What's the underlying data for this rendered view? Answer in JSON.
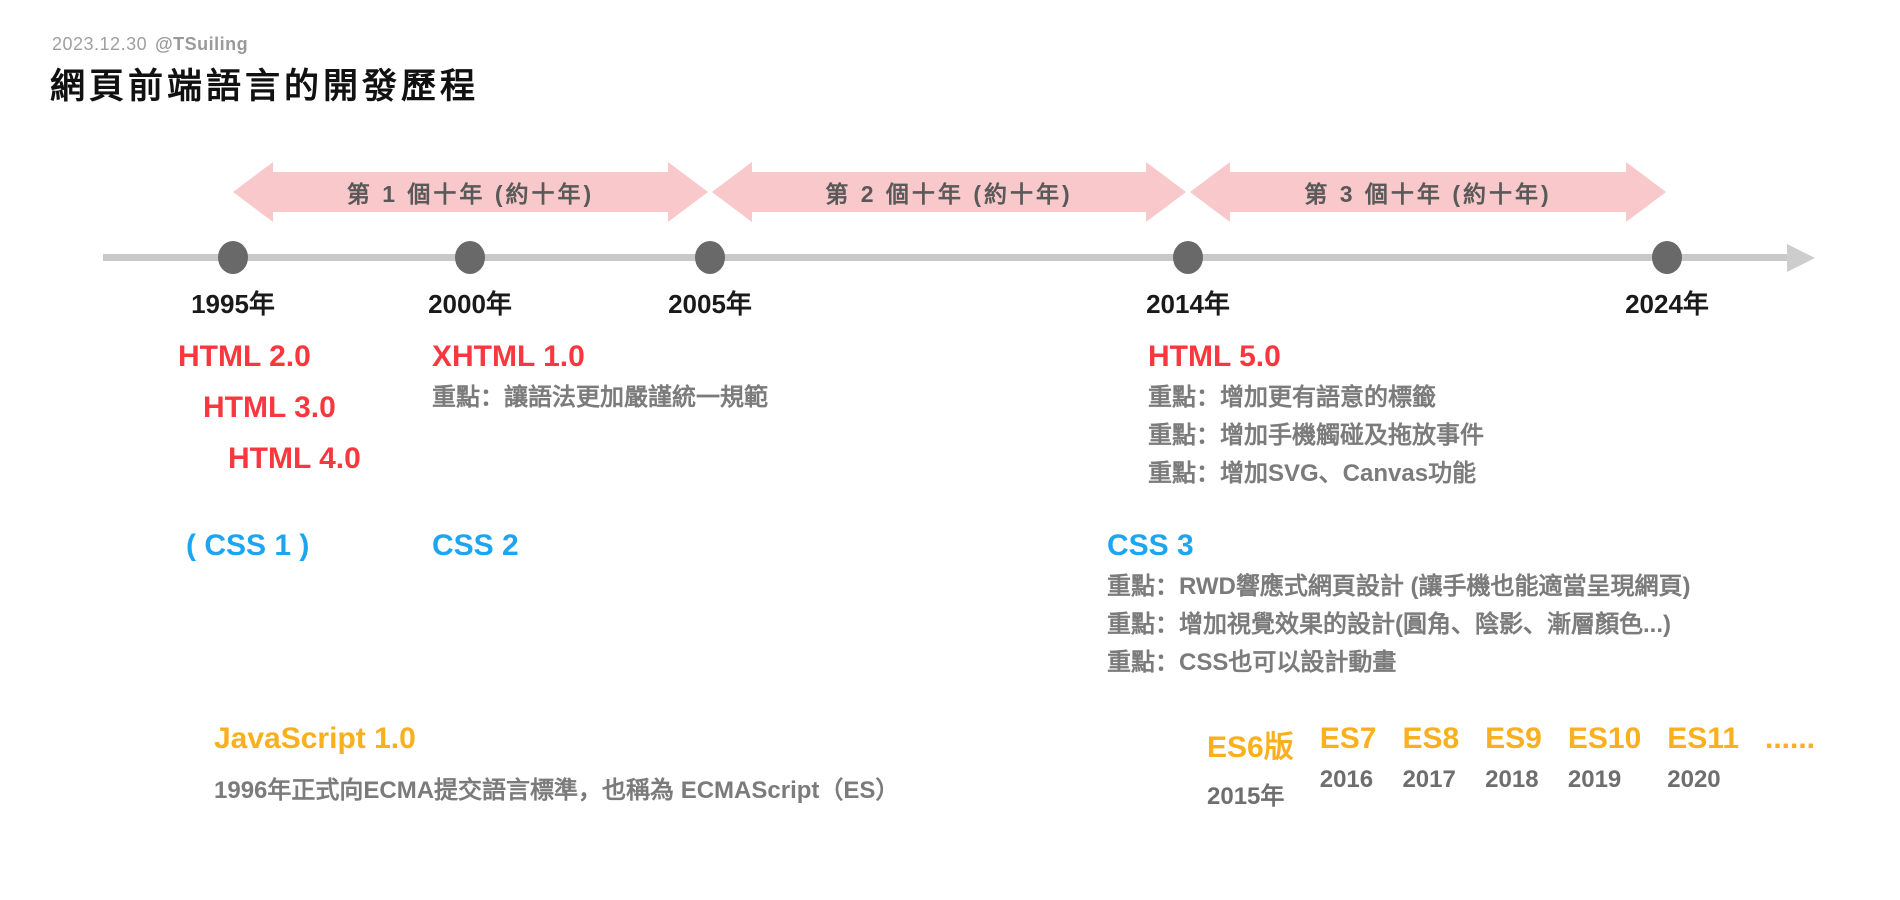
{
  "meta": {
    "date": "2023.12.30",
    "handle": "@TSuiling"
  },
  "title": "網頁前端語言的開發歷程",
  "decades": [
    {
      "label": "第 1 個十年 (約十年)"
    },
    {
      "label": "第 2 個十年 (約十年)"
    },
    {
      "label": "第 3 個十年 (約十年)"
    }
  ],
  "timeline": {
    "years": [
      {
        "label": "1995年"
      },
      {
        "label": "2000年"
      },
      {
        "label": "2005年"
      },
      {
        "label": "2014年"
      },
      {
        "label": "2024年"
      }
    ]
  },
  "html": {
    "early": [
      "HTML 2.0",
      "HTML 3.0",
      "HTML 4.0"
    ],
    "xhtml": {
      "title": "XHTML 1.0",
      "notes": [
        "重點：讓語法更加嚴謹統一規範"
      ]
    },
    "html5": {
      "title": "HTML 5.0",
      "notes": [
        "重點：增加更有語意的標籤",
        "重點：增加手機觸碰及拖放事件",
        "重點：增加SVG、Canvas功能"
      ]
    }
  },
  "css": {
    "css1": "( CSS 1 )",
    "css2": "CSS 2",
    "css3": {
      "title": "CSS 3",
      "notes": [
        "重點：RWD響應式網頁設計 (讓手機也能適當呈現網頁)",
        "重點：增加視覺效果的設計(圓角、陰影、漸層顏色...)",
        "重點：CSS也可以設計動畫"
      ]
    }
  },
  "javascript": {
    "js1": {
      "title": "JavaScript 1.0",
      "note": "1996年正式向ECMA提交語言標準，也稱為 ECMAScript（ES）"
    },
    "es_versions": [
      {
        "label": "ES6版",
        "year": "2015年"
      },
      {
        "label": "ES7",
        "year": "2016"
      },
      {
        "label": "ES8",
        "year": "2017"
      },
      {
        "label": "ES9",
        "year": "2018"
      },
      {
        "label": "ES10",
        "year": "2019"
      },
      {
        "label": "ES11",
        "year": "2020"
      },
      {
        "label": "......",
        "year": ""
      }
    ]
  },
  "colors": {
    "pink_arrow": "#F9C8CB",
    "red_html": "#F8383E",
    "blue_css": "#1CA6F1",
    "orange_js": "#F9B01E",
    "gray_note": "#7B7B7B",
    "timeline_line": "#C9C9C9",
    "dot": "#696969"
  }
}
